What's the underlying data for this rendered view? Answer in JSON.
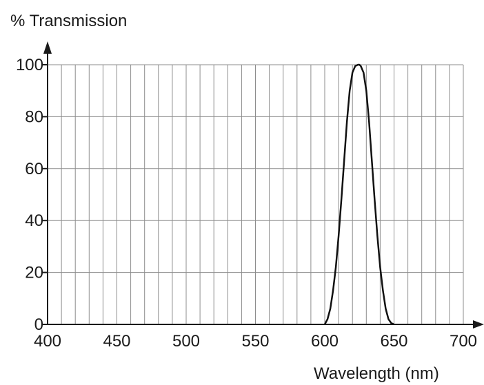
{
  "chart_data": {
    "type": "line",
    "ylabel": "% Transmission",
    "xlabel": "Wavelength (nm)",
    "xlim": [
      400,
      700
    ],
    "ylim": [
      0,
      100
    ],
    "x_ticks": [
      400,
      450,
      500,
      550,
      600,
      650,
      700
    ],
    "y_ticks": [
      0,
      20,
      40,
      60,
      80,
      100
    ],
    "x_minor_step": 10,
    "y_minor_step": 20,
    "grid": true,
    "series": [
      {
        "x": [
          600,
          602,
          604,
          606,
          608,
          610,
          612,
          614,
          616,
          618,
          620,
          622,
          624,
          625,
          626,
          628,
          630,
          632,
          634,
          636,
          638,
          640,
          642,
          644,
          646,
          648,
          650
        ],
        "y": [
          0,
          2,
          6,
          13,
          22,
          34,
          48,
          63,
          78,
          90,
          97,
          99.5,
          100,
          100,
          99.5,
          97,
          90,
          78,
          63,
          48,
          34,
          22,
          13,
          6,
          2,
          0.5,
          0
        ]
      }
    ],
    "colors": {
      "curve": "#111111",
      "grid": "#8c8c8c",
      "axis": "#1a1a1a",
      "background": "#ffffff"
    }
  }
}
